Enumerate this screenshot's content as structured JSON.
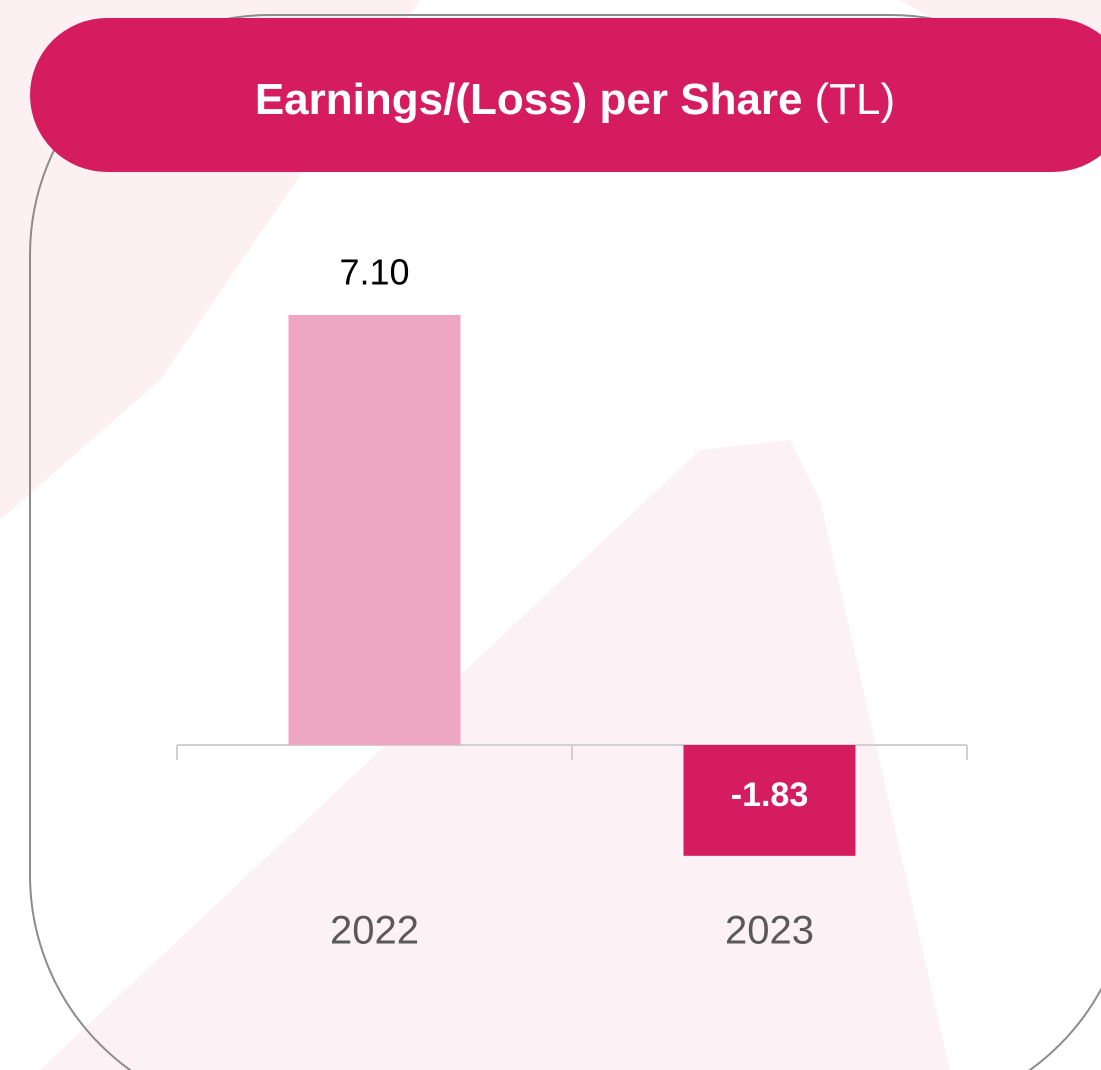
{
  "chart_data": {
    "type": "bar",
    "title": "Earnings/(Loss) per Share",
    "title_unit": "(TL)",
    "categories": [
      "2022",
      "2023"
    ],
    "values": [
      7.1,
      -1.83
    ],
    "value_labels": [
      "7.10",
      "-1.83"
    ],
    "colors": [
      "#eea6c2",
      "#d41c5f"
    ],
    "ylim": [
      -3,
      8
    ]
  }
}
